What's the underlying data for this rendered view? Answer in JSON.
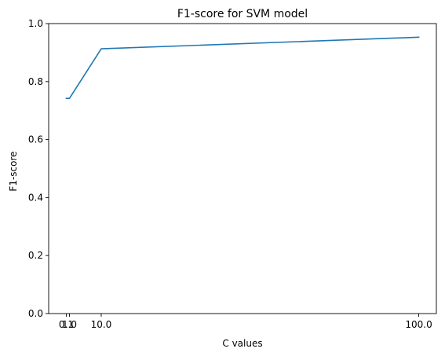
{
  "chart_data": {
    "type": "line",
    "title": "F1-score for SVM model",
    "xlabel": "C values",
    "ylabel": "F1-score",
    "x": [
      0.1,
      1.0,
      10.0,
      100.0
    ],
    "series": [
      {
        "values": [
          0.742,
          0.742,
          0.913,
          0.953
        ]
      }
    ],
    "xticks": [
      0.1,
      1.0,
      10.0,
      100.0
    ],
    "xtick_labels": [
      "0.1",
      "1.0",
      "10.0",
      "100.0"
    ],
    "yticks": [
      0.0,
      0.2,
      0.4,
      0.6,
      0.8,
      1.0
    ],
    "ytick_labels": [
      "0.0",
      "0.2",
      "0.4",
      "0.6",
      "0.8",
      "1.0"
    ],
    "ylim": [
      0,
      1
    ],
    "grid": false,
    "line_color": "#1f77b4"
  }
}
